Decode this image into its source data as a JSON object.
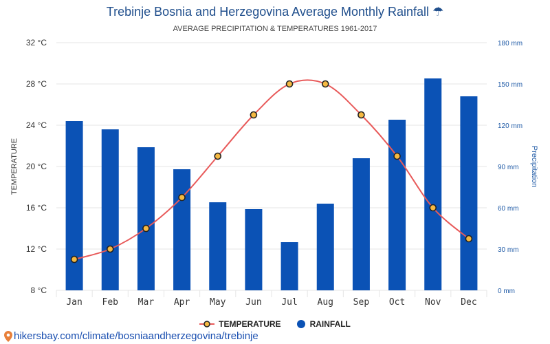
{
  "header": {
    "title": "Trebinje Bosnia and Herzegovina Average Monthly Rainfall",
    "subtitle": "AVERAGE PRECIPITATION & TEMPERATURES 1961-2017"
  },
  "colors": {
    "title": "#1f4e8c",
    "bar": "#0b52b5",
    "line": "#e85a5a",
    "marker_fill": "#f5b942",
    "marker_stroke": "#222222",
    "grid": "#e5e5e5",
    "right_axis": "#1f5aa6"
  },
  "legend": {
    "temperature": "TEMPERATURE",
    "rainfall": "RAINFALL"
  },
  "source": {
    "url_text": "hikersbay.com/climate/bosniaandherzegovina/trebinje"
  },
  "chart_data": {
    "type": "bar+line",
    "categories": [
      "Jan",
      "Feb",
      "Mar",
      "Apr",
      "May",
      "Jun",
      "Jul",
      "Aug",
      "Sep",
      "Oct",
      "Nov",
      "Dec"
    ],
    "series": [
      {
        "name": "RAINFALL",
        "type": "bar",
        "axis": "right",
        "unit": "mm",
        "values": [
          123,
          117,
          104,
          88,
          64,
          59,
          35,
          63,
          96,
          124,
          154,
          141
        ]
      },
      {
        "name": "TEMPERATURE",
        "type": "line",
        "axis": "left",
        "unit": "°C",
        "values": [
          11,
          12,
          14,
          17,
          21,
          25,
          28,
          28,
          25,
          21,
          16,
          13
        ]
      }
    ],
    "ylabel_left": "TEMPERATURE",
    "ylabel_right": "Precipitation",
    "ylim_left": [
      8,
      32
    ],
    "ylim_right": [
      0,
      180
    ],
    "yticks_left": [
      "8 °C",
      "12 °C",
      "16 °C",
      "20 °C",
      "24 °C",
      "28 °C",
      "32 °C"
    ],
    "yticks_right": [
      "0 mm",
      "30 mm",
      "60 mm",
      "90 mm",
      "120 mm",
      "150 mm",
      "180 mm"
    ],
    "grid": true,
    "legend_position": "bottom"
  }
}
